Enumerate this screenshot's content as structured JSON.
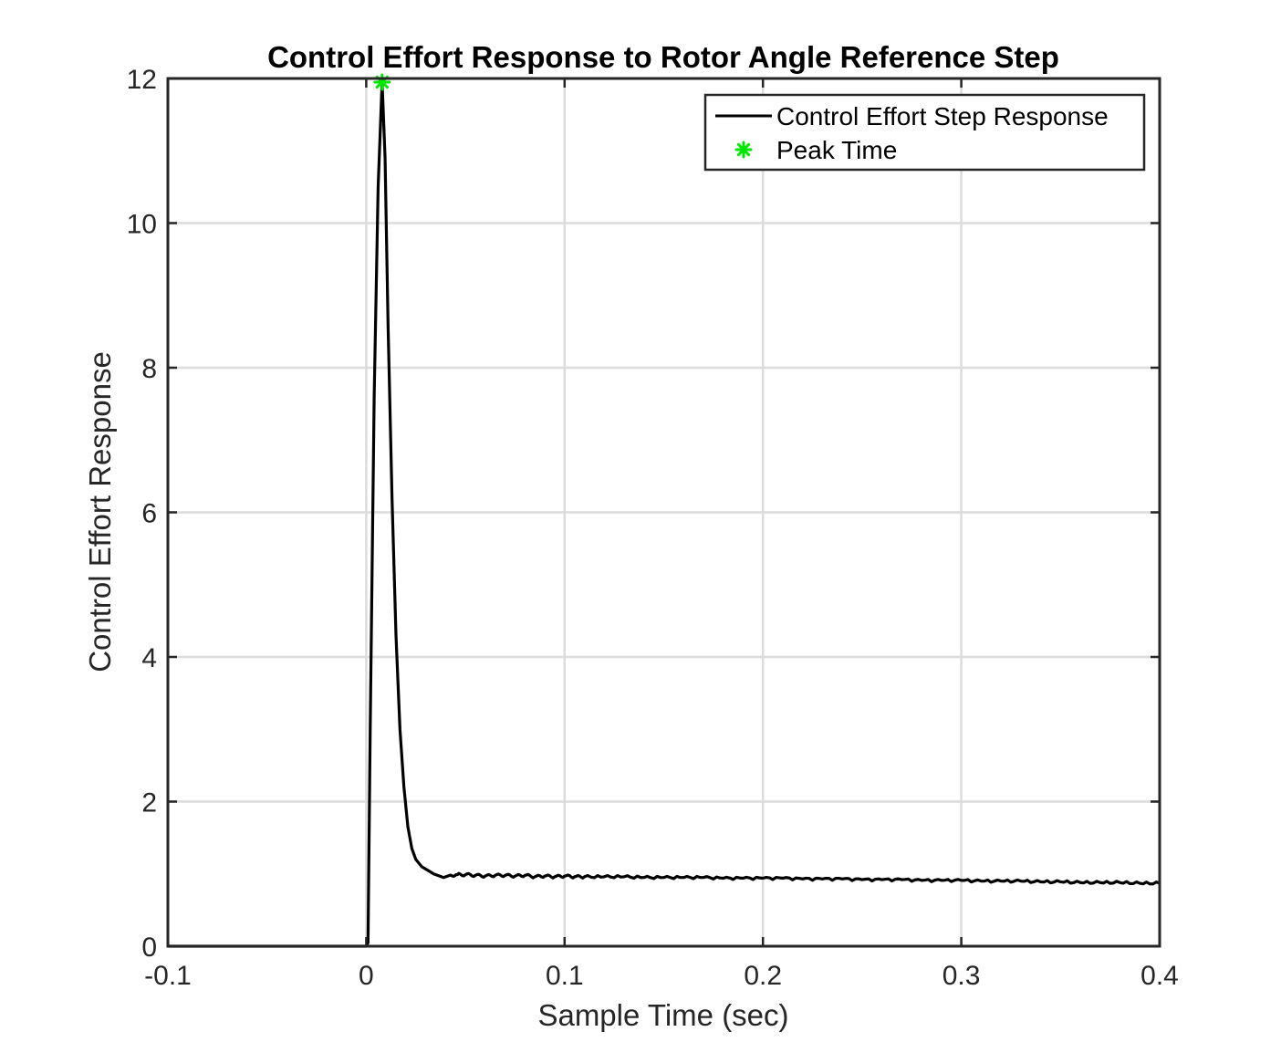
{
  "chart_data": {
    "type": "line",
    "title": "Control Effort Response to Rotor Angle Reference Step",
    "xlabel": "Sample Time (sec)",
    "ylabel": "Control Effort Response",
    "xlim": [
      -0.1,
      0.4
    ],
    "ylim": [
      0,
      12
    ],
    "xticks": [
      -0.1,
      0,
      0.1,
      0.2,
      0.3,
      0.4
    ],
    "xtick_labels": [
      "-0.1",
      "0",
      "0.1",
      "0.2",
      "0.3",
      "0.4"
    ],
    "yticks": [
      0,
      2,
      4,
      6,
      8,
      10,
      12
    ],
    "ytick_labels": [
      "0",
      "2",
      "4",
      "6",
      "8",
      "10",
      "12"
    ],
    "grid": true,
    "legend_position": "top-right",
    "series": [
      {
        "name": "Control Effort Step Response",
        "color": "#000000",
        "style": "line",
        "x": [
          -0.1,
          0.0,
          0.0009,
          0.002,
          0.004,
          0.006,
          0.008,
          0.0095,
          0.011,
          0.013,
          0.015,
          0.017,
          0.019,
          0.021,
          0.023,
          0.025,
          0.028,
          0.031,
          0.034,
          0.037,
          0.039,
          0.042,
          0.046,
          0.05,
          0.055,
          0.06,
          0.065,
          0.07,
          0.075,
          0.08,
          0.085,
          0.09,
          0.095,
          0.1,
          0.105,
          0.11,
          0.12,
          0.13,
          0.14,
          0.15,
          0.16,
          0.17,
          0.18,
          0.19,
          0.2,
          0.21,
          0.22,
          0.23,
          0.24,
          0.25,
          0.26,
          0.27,
          0.28,
          0.29,
          0.3,
          0.31,
          0.32,
          0.33,
          0.34,
          0.35,
          0.36,
          0.37,
          0.38,
          0.39,
          0.4
        ],
        "y": [
          0,
          0,
          0.05,
          3.0,
          7.6,
          10.5,
          11.95,
          10.9,
          8.6,
          6.2,
          4.3,
          3.0,
          2.2,
          1.65,
          1.35,
          1.2,
          1.1,
          1.05,
          1.0,
          0.97,
          0.95,
          0.98,
          0.99,
          0.99,
          0.98,
          0.97,
          0.98,
          0.98,
          0.97,
          0.98,
          0.96,
          0.97,
          0.96,
          0.97,
          0.96,
          0.96,
          0.96,
          0.96,
          0.95,
          0.95,
          0.95,
          0.95,
          0.94,
          0.94,
          0.94,
          0.94,
          0.93,
          0.93,
          0.93,
          0.92,
          0.92,
          0.92,
          0.91,
          0.91,
          0.91,
          0.9,
          0.9,
          0.9,
          0.89,
          0.89,
          0.88,
          0.88,
          0.88,
          0.87,
          0.87
        ]
      },
      {
        "name": "Peak Time",
        "color": "#00e600",
        "style": "marker",
        "x": [
          0.008
        ],
        "y": [
          11.95
        ]
      }
    ]
  }
}
